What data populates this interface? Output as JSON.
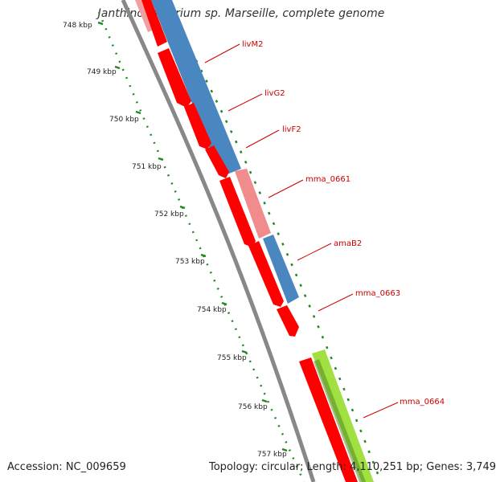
{
  "title": "Janthinobacterium sp. Marseille, complete genome",
  "accession_text": "Accession: NC_009659",
  "summary_text": "Topology: circular; Length: 4,110,251 bp; Genes: 3,749",
  "scale_unit": "kbp",
  "ticks": [
    {
      "label": "748 kbp"
    },
    {
      "label": "749 kbp"
    },
    {
      "label": "750 kbp"
    },
    {
      "label": "751 kbp"
    },
    {
      "label": "752 kbp"
    },
    {
      "label": "753 kbp"
    },
    {
      "label": "754 kbp"
    },
    {
      "label": "755 kbp"
    },
    {
      "label": "756 kbp"
    },
    {
      "label": "757 kbp"
    }
  ],
  "gene_labels": [
    "livM2",
    "livG2",
    "livF2",
    "mma_0661",
    "amaB2",
    "mma_0663",
    "mma_0664"
  ],
  "colors": {
    "cds_red": "#ff0000",
    "gene_blue": "#4a86c0",
    "gene_pink": "#f08c8c",
    "gene_green": "#a0e040",
    "label_red": "#cc0000",
    "backbone_gray": "#888888",
    "tick_green": "#228822"
  }
}
